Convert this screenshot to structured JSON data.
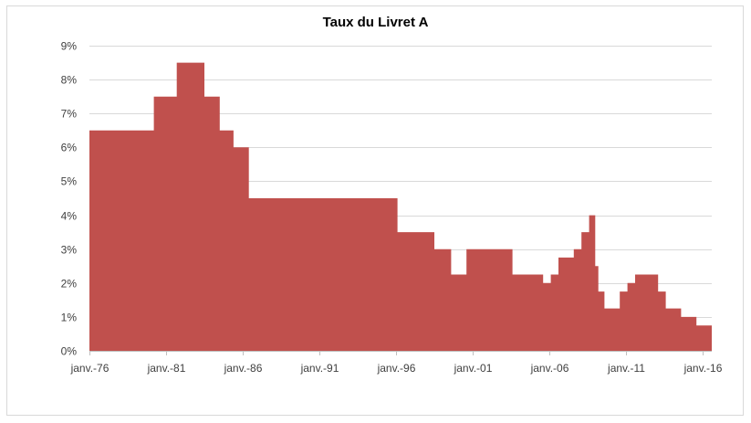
{
  "chart_data": {
    "type": "area",
    "title": "Taux du Livret A",
    "xlabel": "",
    "ylabel": "",
    "x_range": [
      1976.0,
      2016.6
    ],
    "ylim": [
      0,
      9
    ],
    "y_ticks": [
      {
        "value": 0,
        "label": "0%"
      },
      {
        "value": 1,
        "label": "1%"
      },
      {
        "value": 2,
        "label": "2%"
      },
      {
        "value": 3,
        "label": "3%"
      },
      {
        "value": 4,
        "label": "4%"
      },
      {
        "value": 5,
        "label": "5%"
      },
      {
        "value": 6,
        "label": "6%"
      },
      {
        "value": 7,
        "label": "7%"
      },
      {
        "value": 8,
        "label": "8%"
      },
      {
        "value": 9,
        "label": "9%"
      }
    ],
    "x_ticks": [
      {
        "value": 1976,
        "label": "janv.-76"
      },
      {
        "value": 1981,
        "label": "janv.-81"
      },
      {
        "value": 1986,
        "label": "janv.-86"
      },
      {
        "value": 1991,
        "label": "janv.-91"
      },
      {
        "value": 1996,
        "label": "janv.-96"
      },
      {
        "value": 2001,
        "label": "janv.-01"
      },
      {
        "value": 2006,
        "label": "janv.-06"
      },
      {
        "value": 2011,
        "label": "janv.-11"
      },
      {
        "value": 2016,
        "label": "janv.-16"
      }
    ],
    "gridlines": true,
    "legend": "none",
    "series": [
      {
        "name": "Taux du Livret A",
        "color": "#c0504d",
        "step_points": [
          {
            "start": 1976.0,
            "rate": 6.5
          },
          {
            "start": 1980.2,
            "rate": 7.5
          },
          {
            "start": 1981.7,
            "rate": 8.5
          },
          {
            "start": 1983.5,
            "rate": 7.5
          },
          {
            "start": 1984.5,
            "rate": 6.5
          },
          {
            "start": 1985.4,
            "rate": 6.0
          },
          {
            "start": 1986.4,
            "rate": 4.5
          },
          {
            "start": 1996.1,
            "rate": 3.5
          },
          {
            "start": 1998.5,
            "rate": 3.0
          },
          {
            "start": 1999.6,
            "rate": 2.25
          },
          {
            "start": 2000.6,
            "rate": 3.0
          },
          {
            "start": 2003.6,
            "rate": 2.25
          },
          {
            "start": 2005.6,
            "rate": 2.0
          },
          {
            "start": 2006.1,
            "rate": 2.25
          },
          {
            "start": 2006.6,
            "rate": 2.75
          },
          {
            "start": 2007.6,
            "rate": 3.0
          },
          {
            "start": 2008.1,
            "rate": 3.5
          },
          {
            "start": 2008.6,
            "rate": 4.0
          },
          {
            "start": 2009.0,
            "rate": 2.5
          },
          {
            "start": 2009.2,
            "rate": 1.75
          },
          {
            "start": 2009.6,
            "rate": 1.25
          },
          {
            "start": 2010.6,
            "rate": 1.75
          },
          {
            "start": 2011.1,
            "rate": 2.0
          },
          {
            "start": 2011.6,
            "rate": 2.25
          },
          {
            "start": 2013.1,
            "rate": 1.75
          },
          {
            "start": 2013.6,
            "rate": 1.25
          },
          {
            "start": 2014.6,
            "rate": 1.0
          },
          {
            "start": 2015.6,
            "rate": 0.75
          }
        ]
      }
    ]
  }
}
